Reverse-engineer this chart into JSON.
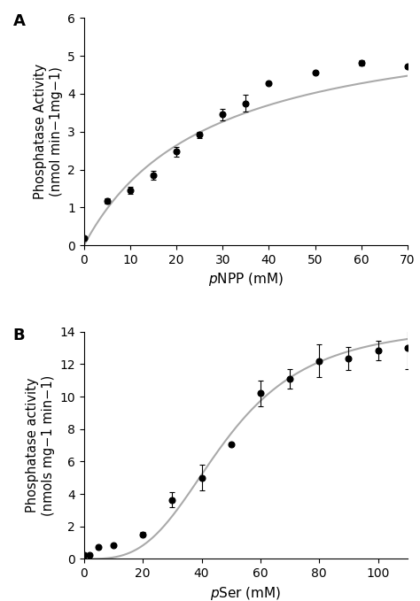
{
  "panel_A": {
    "x": [
      0,
      5,
      10,
      15,
      20,
      25,
      30,
      35,
      40,
      50,
      60,
      70
    ],
    "y": [
      0.18,
      1.17,
      1.45,
      1.85,
      2.47,
      2.92,
      3.45,
      3.75,
      4.28,
      4.55,
      4.82,
      4.73
    ],
    "yerr": [
      0.02,
      0.07,
      0.1,
      0.12,
      0.12,
      0.08,
      0.15,
      0.22,
      0.0,
      0.0,
      0.07,
      0.05
    ],
    "Vmax": 6.2,
    "Km": 27.0,
    "xlabel_italic": "p",
    "xlabel_rest": "NPP (mM)",
    "ylabel": "Phosphatase Activity\n(nmol min−1mg−1)",
    "ylim": [
      0,
      6
    ],
    "xlim": [
      0,
      70
    ],
    "yticks": [
      0,
      1,
      2,
      3,
      4,
      5,
      6
    ],
    "xticks": [
      0,
      10,
      20,
      30,
      40,
      50,
      60,
      70
    ],
    "label": "A"
  },
  "panel_B": {
    "x": [
      0,
      2,
      5,
      10,
      20,
      30,
      40,
      50,
      60,
      70,
      80,
      90,
      100,
      110
    ],
    "y": [
      0.22,
      0.22,
      0.72,
      0.85,
      1.52,
      3.65,
      5.0,
      7.05,
      10.2,
      11.1,
      12.2,
      12.35,
      12.85,
      13.0
    ],
    "yerr": [
      0.05,
      0.05,
      0.08,
      0.06,
      0.15,
      0.45,
      0.8,
      0.0,
      0.8,
      0.6,
      1.0,
      0.7,
      0.6,
      1.3
    ],
    "Vmax": 14.5,
    "Km": 48.0,
    "n": 3.2,
    "xlabel_italic": "p",
    "xlabel_rest": "Ser (mM)",
    "ylabel": "Phosphatase activity\n(nmols mg−1 min−1)",
    "ylim": [
      0,
      14
    ],
    "xlim": [
      0,
      110
    ],
    "yticks": [
      0,
      2,
      4,
      6,
      8,
      10,
      12,
      14
    ],
    "xticks": [
      0,
      20,
      40,
      60,
      80,
      100
    ],
    "label": "B"
  },
  "curve_color": "#aaaaaa",
  "dot_color": "#000000",
  "dot_marker": "o",
  "ecolor": "#000000",
  "capsize": 2,
  "linewidth": 1.5,
  "elinewidth": 0.8,
  "label_fontsize": 11,
  "tick_fontsize": 10,
  "panel_label_fontsize": 13
}
